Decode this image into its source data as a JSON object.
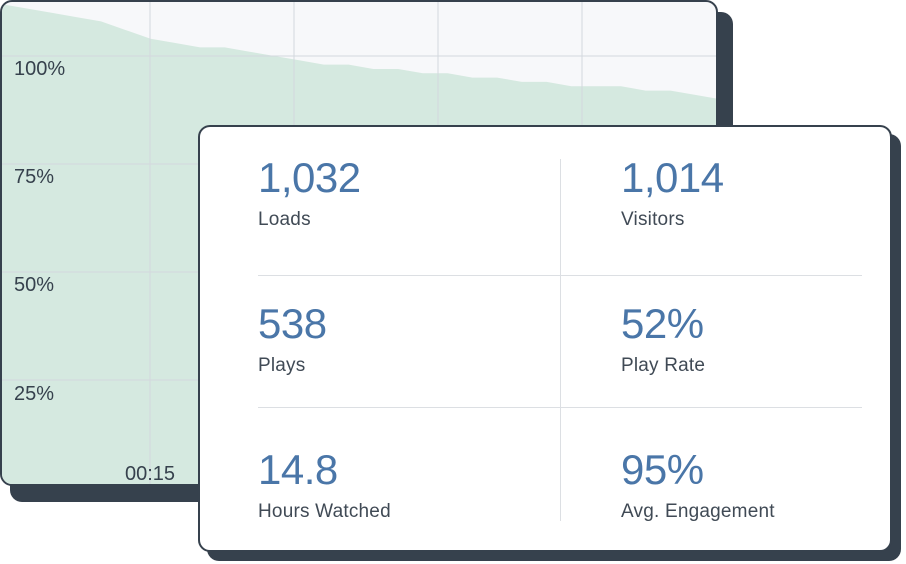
{
  "chart": {
    "y_ticks": [
      "100%",
      "75%",
      "50%",
      "25%"
    ],
    "x_ticks": [
      "00:15"
    ],
    "fill_color": "#cfe6da"
  },
  "chart_data": {
    "type": "area",
    "ylabel": "",
    "xlabel": "",
    "ylim": [
      0,
      100
    ],
    "x_ticks": [
      "00:15"
    ],
    "y_ticks": [
      "100%",
      "75%",
      "50%",
      "25%"
    ],
    "series": [
      {
        "values": [
          112,
          111,
          110,
          109,
          108,
          106,
          104,
          103,
          102,
          102,
          101,
          100,
          99,
          98,
          98,
          97,
          97,
          96,
          96,
          95,
          95,
          94,
          94,
          93,
          93,
          93,
          92,
          92,
          91,
          90
        ]
      }
    ]
  },
  "stats": {
    "loads": {
      "value": "1,032",
      "label": "Loads"
    },
    "visitors": {
      "value": "1,014",
      "label": "Visitors"
    },
    "plays": {
      "value": "538",
      "label": "Plays"
    },
    "play_rate": {
      "value": "52%",
      "label": "Play Rate"
    },
    "hours_watched": {
      "value": "14.8",
      "label": "Hours Watched"
    },
    "avg_engagement": {
      "value": "95%",
      "label": "Avg. Engagement"
    }
  }
}
